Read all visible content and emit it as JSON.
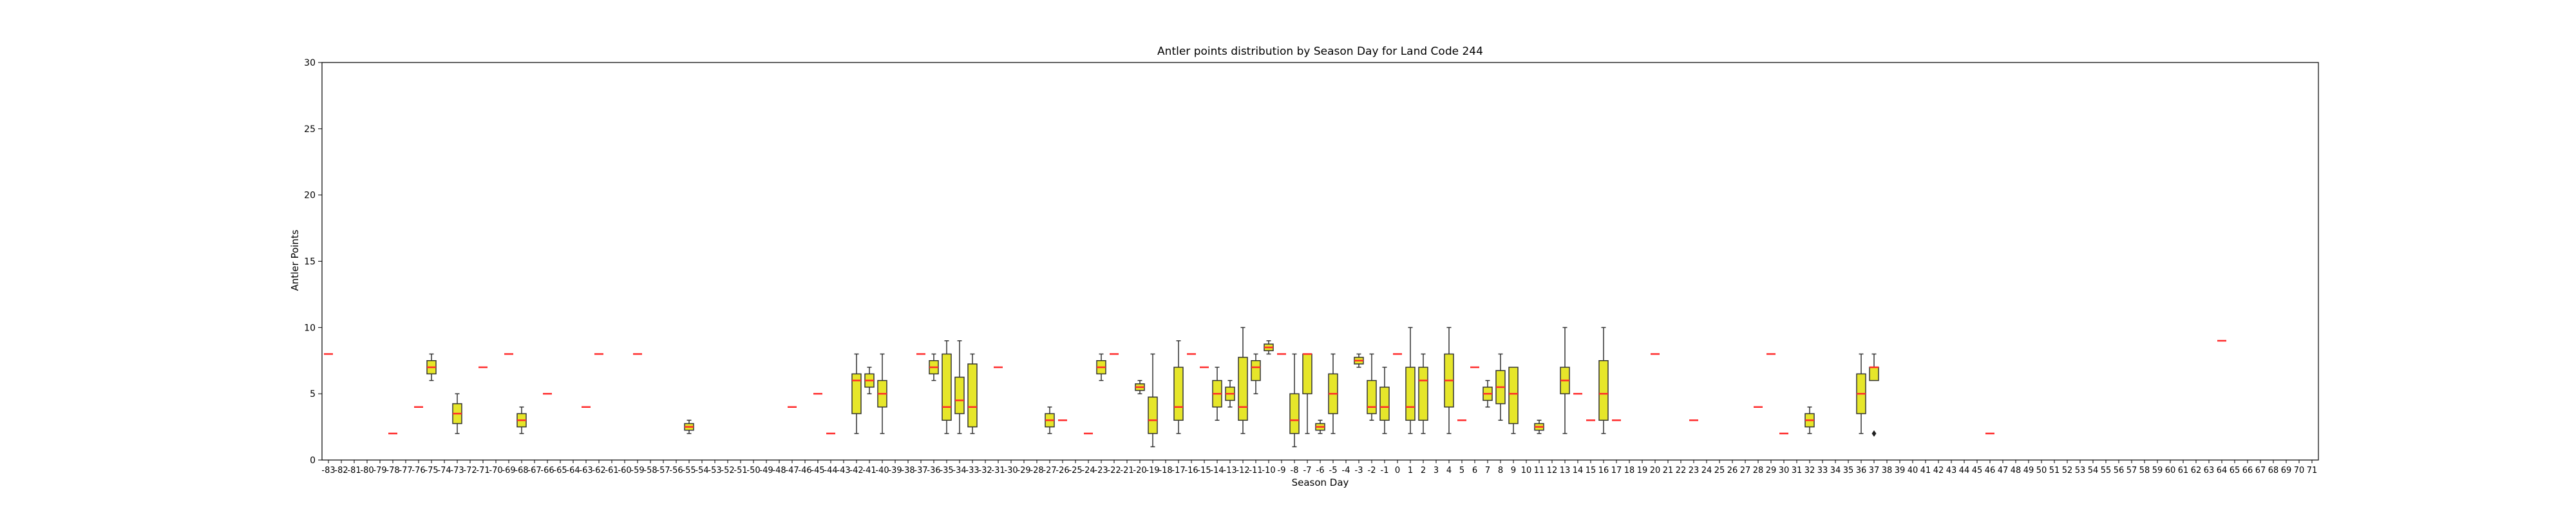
{
  "chart_data": {
    "type": "box",
    "title": "Antler points distribution by Season Day for Land Code 244",
    "xlabel": "Season Day",
    "ylabel": "Antler Points",
    "ylim": [
      0,
      30
    ],
    "yticks": [
      0,
      5,
      10,
      15,
      20,
      25,
      30
    ],
    "xrange": [
      -83,
      71
    ],
    "grid": false,
    "box_color": "#e6e62a",
    "median_color": "#ff2a2a",
    "line_color": "#333333",
    "boxes": [
      {
        "x": -83,
        "min": 8,
        "q1": 8,
        "median": 8,
        "q3": 8,
        "max": 8
      },
      {
        "x": -78,
        "min": 2,
        "q1": 2,
        "median": 2,
        "q3": 2,
        "max": 2
      },
      {
        "x": -76,
        "min": 4,
        "q1": 4,
        "median": 4,
        "q3": 4,
        "max": 4
      },
      {
        "x": -75,
        "min": 6,
        "q1": 6.5,
        "median": 7,
        "q3": 7.5,
        "max": 8
      },
      {
        "x": -73,
        "min": 2,
        "q1": 2.75,
        "median": 3.5,
        "q3": 4.25,
        "max": 5
      },
      {
        "x": -71,
        "min": 7,
        "q1": 7,
        "median": 7,
        "q3": 7,
        "max": 7
      },
      {
        "x": -69,
        "min": 8,
        "q1": 8,
        "median": 8,
        "q3": 8,
        "max": 8
      },
      {
        "x": -68,
        "min": 2,
        "q1": 2.5,
        "median": 3,
        "q3": 3.5,
        "max": 4
      },
      {
        "x": -66,
        "min": 5,
        "q1": 5,
        "median": 5,
        "q3": 5,
        "max": 5
      },
      {
        "x": -63,
        "min": 4,
        "q1": 4,
        "median": 4,
        "q3": 4,
        "max": 4
      },
      {
        "x": -62,
        "min": 8,
        "q1": 8,
        "median": 8,
        "q3": 8,
        "max": 8
      },
      {
        "x": -59,
        "min": 8,
        "q1": 8,
        "median": 8,
        "q3": 8,
        "max": 8
      },
      {
        "x": -55,
        "min": 2,
        "q1": 2.25,
        "median": 2.5,
        "q3": 2.75,
        "max": 3
      },
      {
        "x": -47,
        "min": 4,
        "q1": 4,
        "median": 4,
        "q3": 4,
        "max": 4
      },
      {
        "x": -45,
        "min": 5,
        "q1": 5,
        "median": 5,
        "q3": 5,
        "max": 5
      },
      {
        "x": -44,
        "min": 2,
        "q1": 2,
        "median": 2,
        "q3": 2,
        "max": 2
      },
      {
        "x": -42,
        "min": 2,
        "q1": 3.5,
        "median": 6,
        "q3": 6.5,
        "max": 8
      },
      {
        "x": -41,
        "min": 5,
        "q1": 5.5,
        "median": 6,
        "q3": 6.5,
        "max": 7
      },
      {
        "x": -40,
        "min": 2,
        "q1": 4,
        "median": 5,
        "q3": 6,
        "max": 8
      },
      {
        "x": -37,
        "min": 8,
        "q1": 8,
        "median": 8,
        "q3": 8,
        "max": 8
      },
      {
        "x": -36,
        "min": 6,
        "q1": 6.5,
        "median": 7,
        "q3": 7.5,
        "max": 8
      },
      {
        "x": -35,
        "min": 2,
        "q1": 3,
        "median": 4,
        "q3": 8,
        "max": 9
      },
      {
        "x": -34,
        "min": 2,
        "q1": 3.5,
        "median": 4.5,
        "q3": 6.25,
        "max": 9
      },
      {
        "x": -33,
        "min": 2,
        "q1": 2.5,
        "median": 4,
        "q3": 7.25,
        "max": 8
      },
      {
        "x": -31,
        "min": 7,
        "q1": 7,
        "median": 7,
        "q3": 7,
        "max": 7
      },
      {
        "x": -27,
        "min": 2,
        "q1": 2.5,
        "median": 3,
        "q3": 3.5,
        "max": 4
      },
      {
        "x": -26,
        "min": 3,
        "q1": 3,
        "median": 3,
        "q3": 3,
        "max": 3
      },
      {
        "x": -24,
        "min": 2,
        "q1": 2,
        "median": 2,
        "q3": 2,
        "max": 2
      },
      {
        "x": -23,
        "min": 6,
        "q1": 6.5,
        "median": 7,
        "q3": 7.5,
        "max": 8
      },
      {
        "x": -22,
        "min": 8,
        "q1": 8,
        "median": 8,
        "q3": 8,
        "max": 8
      },
      {
        "x": -20,
        "min": 5,
        "q1": 5.25,
        "median": 5.5,
        "q3": 5.75,
        "max": 6
      },
      {
        "x": -19,
        "min": 1,
        "q1": 2,
        "median": 3,
        "q3": 4.75,
        "max": 8
      },
      {
        "x": -17,
        "min": 2,
        "q1": 3,
        "median": 4,
        "q3": 7,
        "max": 9
      },
      {
        "x": -16,
        "min": 8,
        "q1": 8,
        "median": 8,
        "q3": 8,
        "max": 8
      },
      {
        "x": -15,
        "min": 7,
        "q1": 7,
        "median": 7,
        "q3": 7,
        "max": 7
      },
      {
        "x": -14,
        "min": 3,
        "q1": 4,
        "median": 5,
        "q3": 6,
        "max": 7
      },
      {
        "x": -13,
        "min": 4,
        "q1": 4.5,
        "median": 5,
        "q3": 5.5,
        "max": 6
      },
      {
        "x": -12,
        "min": 2,
        "q1": 3,
        "median": 4,
        "q3": 7.75,
        "max": 10
      },
      {
        "x": -11,
        "min": 5,
        "q1": 6,
        "median": 7,
        "q3": 7.5,
        "max": 8
      },
      {
        "x": -10,
        "min": 8,
        "q1": 8.25,
        "median": 8.5,
        "q3": 8.75,
        "max": 9
      },
      {
        "x": -9,
        "min": 8,
        "q1": 8,
        "median": 8,
        "q3": 8,
        "max": 8
      },
      {
        "x": -8,
        "min": 1,
        "q1": 2,
        "median": 3,
        "q3": 5,
        "max": 8
      },
      {
        "x": -7,
        "min": 2,
        "q1": 5,
        "median": 8,
        "q3": 8,
        "max": 8
      },
      {
        "x": -6,
        "min": 2,
        "q1": 2.25,
        "median": 2.5,
        "q3": 2.75,
        "max": 3
      },
      {
        "x": -5,
        "min": 2,
        "q1": 3.5,
        "median": 5,
        "q3": 6.5,
        "max": 8
      },
      {
        "x": -3,
        "min": 7,
        "q1": 7.25,
        "median": 7.5,
        "q3": 7.75,
        "max": 8
      },
      {
        "x": -2,
        "min": 3,
        "q1": 3.5,
        "median": 4,
        "q3": 6,
        "max": 8
      },
      {
        "x": -1,
        "min": 2,
        "q1": 3,
        "median": 4,
        "q3": 5.5,
        "max": 7
      },
      {
        "x": 0,
        "min": 8,
        "q1": 8,
        "median": 8,
        "q3": 8,
        "max": 8
      },
      {
        "x": 1,
        "min": 2,
        "q1": 3,
        "median": 4,
        "q3": 7,
        "max": 10
      },
      {
        "x": 2,
        "min": 2,
        "q1": 3,
        "median": 6,
        "q3": 7,
        "max": 8
      },
      {
        "x": 4,
        "min": 2,
        "q1": 4,
        "median": 6,
        "q3": 8,
        "max": 10
      },
      {
        "x": 5,
        "min": 3,
        "q1": 3,
        "median": 3,
        "q3": 3,
        "max": 3
      },
      {
        "x": 6,
        "min": 7,
        "q1": 7,
        "median": 7,
        "q3": 7,
        "max": 7
      },
      {
        "x": 7,
        "min": 4,
        "q1": 4.5,
        "median": 5,
        "q3": 5.5,
        "max": 6
      },
      {
        "x": 8,
        "min": 3,
        "q1": 4.25,
        "median": 5.5,
        "q3": 6.75,
        "max": 8
      },
      {
        "x": 9,
        "min": 2,
        "q1": 2.75,
        "median": 5,
        "q3": 7,
        "max": 7
      },
      {
        "x": 11,
        "min": 2,
        "q1": 2.25,
        "median": 2.5,
        "q3": 2.75,
        "max": 3
      },
      {
        "x": 13,
        "min": 2,
        "q1": 5,
        "median": 6,
        "q3": 7,
        "max": 10
      },
      {
        "x": 14,
        "min": 5,
        "q1": 5,
        "median": 5,
        "q3": 5,
        "max": 5
      },
      {
        "x": 15,
        "min": 3,
        "q1": 3,
        "median": 3,
        "q3": 3,
        "max": 3
      },
      {
        "x": 16,
        "min": 2,
        "q1": 3,
        "median": 5,
        "q3": 7.5,
        "max": 10
      },
      {
        "x": 17,
        "min": 3,
        "q1": 3,
        "median": 3,
        "q3": 3,
        "max": 3
      },
      {
        "x": 20,
        "min": 8,
        "q1": 8,
        "median": 8,
        "q3": 8,
        "max": 8
      },
      {
        "x": 23,
        "min": 3,
        "q1": 3,
        "median": 3,
        "q3": 3,
        "max": 3
      },
      {
        "x": 28,
        "min": 4,
        "q1": 4,
        "median": 4,
        "q3": 4,
        "max": 4
      },
      {
        "x": 29,
        "min": 8,
        "q1": 8,
        "median": 8,
        "q3": 8,
        "max": 8
      },
      {
        "x": 30,
        "min": 2,
        "q1": 2,
        "median": 2,
        "q3": 2,
        "max": 2
      },
      {
        "x": 32,
        "min": 2,
        "q1": 2.5,
        "median": 3,
        "q3": 3.5,
        "max": 4
      },
      {
        "x": 36,
        "min": 2,
        "q1": 3.5,
        "median": 5,
        "q3": 6.5,
        "max": 8
      },
      {
        "x": 37,
        "min": 6,
        "q1": 6,
        "median": 7,
        "q3": 7,
        "max": 8,
        "outliers": [
          2
        ]
      },
      {
        "x": 46,
        "min": 2,
        "q1": 2,
        "median": 2,
        "q3": 2,
        "max": 2
      },
      {
        "x": 64,
        "min": 9,
        "q1": 9,
        "median": 9,
        "q3": 9,
        "max": 9
      }
    ]
  }
}
